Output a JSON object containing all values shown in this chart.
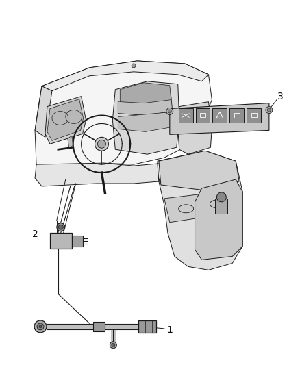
{
  "background_color": "#ffffff",
  "figsize": [
    4.38,
    5.33
  ],
  "dpi": 100,
  "line_color": "#1a1a1a",
  "text_color": "#111111",
  "fill_light": "#e8e8e8",
  "fill_mid": "#c8c8c8",
  "fill_dark": "#888888"
}
